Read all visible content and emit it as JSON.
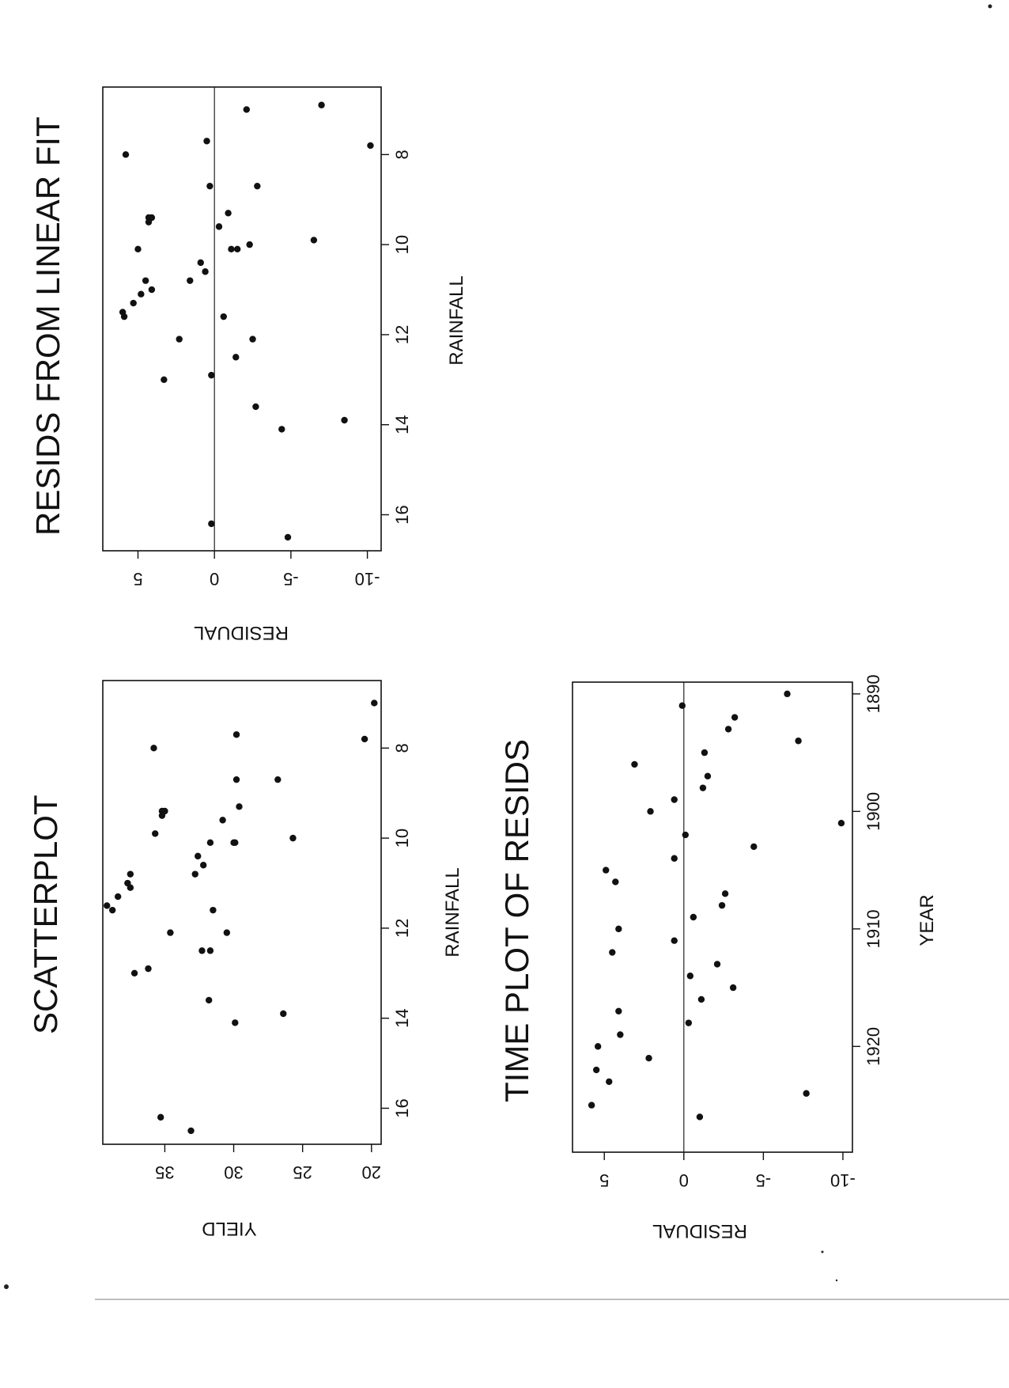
{
  "chart_data": [
    {
      "id": "scatter",
      "type": "scatter",
      "title": "SCATTERPLOT",
      "xlabel": "RAINFALL",
      "ylabel": "YIELD",
      "xlim": [
        6.5,
        16.8
      ],
      "ylim": [
        19.3,
        39.5
      ],
      "xticks": [
        8,
        10,
        12,
        14,
        16
      ],
      "yticks": [
        20,
        25,
        30,
        35
      ],
      "x": [
        7.0,
        7.8,
        8.0,
        7.7,
        8.7,
        8.7,
        9.3,
        9.4,
        9.4,
        9.5,
        9.6,
        9.9,
        10.0,
        10.1,
        10.1,
        10.1,
        10.4,
        10.6,
        10.8,
        10.8,
        11.0,
        11.1,
        11.3,
        11.5,
        11.6,
        11.6,
        12.1,
        12.1,
        12.5,
        12.5,
        12.9,
        13.0,
        13.6,
        13.9,
        14.1,
        16.2,
        16.5
      ],
      "y": [
        19.8,
        20.5,
        35.8,
        29.8,
        26.8,
        29.8,
        29.6,
        35.2,
        35.0,
        35.2,
        30.8,
        35.7,
        25.7,
        31.7,
        29.9,
        30.0,
        32.6,
        32.2,
        32.8,
        37.5,
        37.7,
        37.5,
        38.4,
        39.2,
        38.8,
        31.5,
        30.5,
        34.6,
        31.7,
        32.3,
        36.2,
        37.2,
        31.8,
        26.4,
        29.9,
        35.3,
        33.1
      ]
    },
    {
      "id": "resid-linear",
      "type": "scatter",
      "title": "RESIDS FROM LINEAR FIT",
      "xlabel": "RAINFALL",
      "ylabel": "RESIDUAL",
      "xlim": [
        6.5,
        16.8
      ],
      "ylim": [
        -10.9,
        7.3
      ],
      "xticks": [
        8,
        10,
        12,
        14,
        16
      ],
      "yticks": [
        5,
        0,
        -5,
        -10
      ],
      "x": [
        7.0,
        7.8,
        8.0,
        6.9,
        7.7,
        8.7,
        8.7,
        9.3,
        9.4,
        9.4,
        9.5,
        9.6,
        9.9,
        10.0,
        10.1,
        10.1,
        10.1,
        10.4,
        10.6,
        10.8,
        10.8,
        11.0,
        11.1,
        11.3,
        11.5,
        11.6,
        11.6,
        12.1,
        12.1,
        12.5,
        12.9,
        13.0,
        13.6,
        13.9,
        14.1,
        16.2,
        16.5
      ],
      "y": [
        -2.1,
        -10.2,
        5.8,
        -7.0,
        0.5,
        0.3,
        -2.8,
        -0.9,
        4.1,
        4.3,
        4.3,
        -0.3,
        -6.5,
        -2.3,
        5.0,
        -1.1,
        -1.5,
        0.9,
        0.6,
        1.6,
        4.5,
        4.1,
        4.8,
        5.3,
        6.0,
        5.9,
        -0.6,
        -2.5,
        2.3,
        -1.4,
        0.2,
        3.3,
        -2.7,
        -8.5,
        -4.4,
        0.2,
        -4.8
      ]
    },
    {
      "id": "time-resids",
      "type": "scatter",
      "title": "TIME PLOT OF RESIDS",
      "xlabel": "YEAR",
      "ylabel": "RESIDUAL",
      "xlim": [
        1889,
        1929
      ],
      "ylim": [
        -10.6,
        7.0
      ],
      "xticks": [
        1890,
        1900,
        1910,
        1920
      ],
      "yticks": [
        5,
        0,
        -5,
        -10
      ],
      "x": [
        1890,
        1891,
        1892,
        1893,
        1894,
        1895,
        1896,
        1897,
        1898,
        1899,
        1900,
        1901,
        1902,
        1903,
        1904,
        1905,
        1906,
        1907,
        1908,
        1909,
        1910,
        1911,
        1912,
        1913,
        1914,
        1915,
        1916,
        1917,
        1918,
        1919,
        1920,
        1921,
        1922,
        1923,
        1924,
        1925,
        1926
      ],
      "y": [
        -6.5,
        0.1,
        -3.2,
        -2.8,
        -7.2,
        -1.3,
        3.1,
        -1.5,
        -1.2,
        0.6,
        2.1,
        -9.9,
        -0.1,
        -4.4,
        0.6,
        4.9,
        4.3,
        -2.6,
        -2.4,
        -0.6,
        4.1,
        0.6,
        4.5,
        -2.1,
        -0.4,
        -3.1,
        -1.1,
        4.1,
        -0.3,
        4.0,
        5.4,
        2.2,
        5.5,
        4.7,
        -7.7,
        5.8,
        -1.0
      ]
    }
  ]
}
